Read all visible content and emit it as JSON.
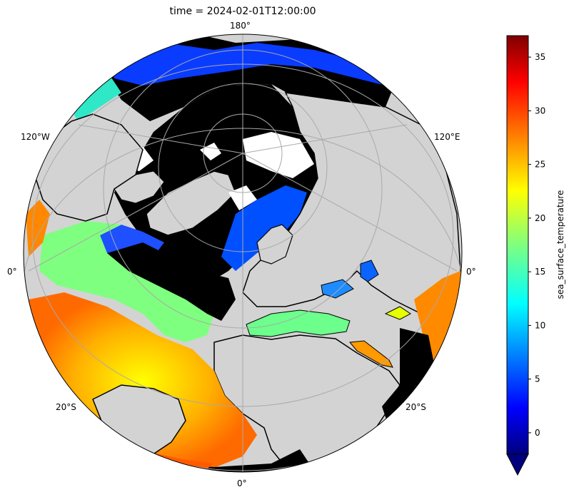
{
  "figure": {
    "title": "time = 2024-02-01T12:00:00"
  },
  "map": {
    "projection": "orthographic",
    "land_color": "#d3d3d3",
    "nodata_color": "#000000",
    "graticule_color": "#a9a9a9",
    "labels": {
      "top": "180°",
      "bottom": "0°",
      "left": "0°",
      "right": "0°",
      "upper_left": "120°W",
      "upper_right": "120°E",
      "lower_left": "20°S",
      "lower_right": "20°S"
    }
  },
  "colorbar": {
    "label": "sea_surface_temperature",
    "colormap": "jet",
    "range": [
      -2,
      37
    ],
    "extend": "min",
    "ticks": [
      "0",
      "5",
      "10",
      "15",
      "20",
      "25",
      "30",
      "35"
    ],
    "tick_values": [
      0,
      5,
      10,
      15,
      20,
      25,
      30,
      35
    ]
  }
}
